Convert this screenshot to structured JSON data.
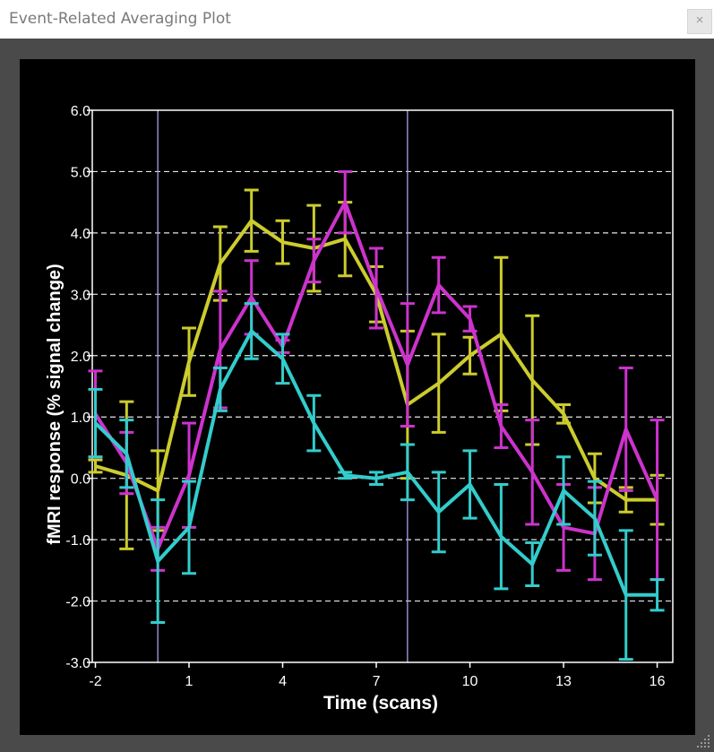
{
  "window": {
    "title": "Event-Related Averaging Plot",
    "close_label": "×"
  },
  "chart_data": {
    "type": "line",
    "xlabel": "Time (scans)",
    "ylabel": "fMRI response (% signal change)",
    "xlim": [
      -2.1,
      16.5
    ],
    "ylim": [
      -3.0,
      6.0
    ],
    "x_ticks": [
      -2,
      1,
      4,
      7,
      10,
      13,
      16
    ],
    "y_ticks": [
      -3.0,
      -2.0,
      -1.0,
      0.0,
      1.0,
      2.0,
      3.0,
      4.0,
      5.0,
      6.0
    ],
    "y_tick_labels": [
      "-3.0",
      "-2.0",
      "-1.0",
      "0.0",
      "1.0",
      "2.0",
      "3.0",
      "4.0",
      "5.0",
      "6.0"
    ],
    "grid": "horizontal dashed",
    "markers": [
      0,
      8
    ],
    "x": [
      -2,
      -1,
      0,
      1,
      2,
      3,
      4,
      5,
      6,
      7,
      8,
      9,
      10,
      11,
      12,
      13,
      14,
      15,
      16
    ],
    "series": [
      {
        "color": "#cccc2e",
        "values": [
          0.2,
          0.05,
          -0.2,
          1.9,
          3.5,
          4.2,
          3.85,
          3.75,
          3.9,
          3.0,
          1.2,
          1.55,
          2.0,
          2.35,
          1.6,
          1.05,
          0.0,
          -0.35,
          -0.35
        ],
        "errors": [
          0.1,
          1.2,
          0.65,
          0.55,
          0.6,
          0.5,
          0.35,
          0.7,
          0.6,
          0.45,
          1.2,
          0.8,
          0.3,
          1.25,
          1.05,
          0.15,
          0.4,
          0.2,
          0.4
        ]
      },
      {
        "color": "#cc33cc",
        "values": [
          1.05,
          0.25,
          -1.15,
          0.05,
          2.1,
          2.95,
          2.15,
          3.55,
          4.5,
          3.1,
          1.85,
          3.15,
          2.6,
          0.85,
          0.1,
          -0.8,
          -0.9,
          0.8,
          -0.35
        ],
        "errors": [
          0.7,
          0.5,
          0.35,
          0.85,
          0.95,
          0.6,
          0.1,
          0.35,
          0.5,
          0.65,
          1.0,
          0.45,
          0.2,
          0.35,
          0.85,
          0.7,
          0.75,
          1.0,
          1.3
        ]
      },
      {
        "color": "#33cccc",
        "values": [
          0.9,
          0.4,
          -1.35,
          -0.8,
          1.45,
          2.4,
          1.95,
          0.9,
          0.05,
          0.0,
          0.1,
          -0.55,
          -0.1,
          -0.95,
          -1.4,
          -0.2,
          -0.65,
          -1.9,
          -1.9
        ],
        "errors": [
          0.55,
          0.55,
          1.0,
          0.75,
          0.35,
          0.45,
          0.4,
          0.45,
          0.05,
          0.1,
          0.45,
          0.65,
          0.55,
          0.85,
          0.35,
          0.55,
          0.6,
          1.05,
          0.25
        ]
      }
    ]
  }
}
